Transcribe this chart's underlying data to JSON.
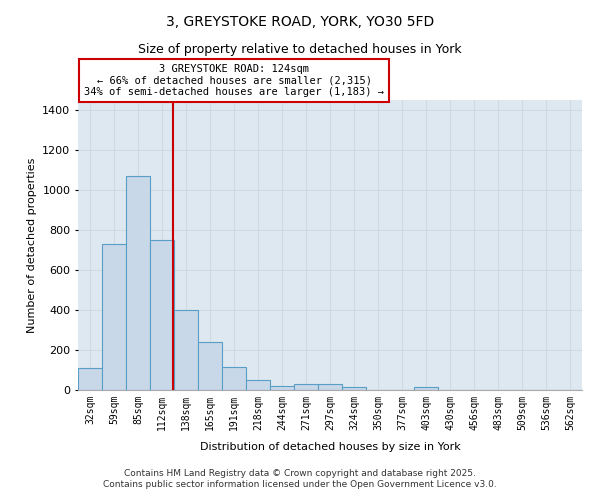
{
  "title1": "3, GREYSTOKE ROAD, YORK, YO30 5FD",
  "title2": "Size of property relative to detached houses in York",
  "xlabel": "Distribution of detached houses by size in York",
  "ylabel": "Number of detached properties",
  "categories": [
    "32sqm",
    "59sqm",
    "85sqm",
    "112sqm",
    "138sqm",
    "165sqm",
    "191sqm",
    "218sqm",
    "244sqm",
    "271sqm",
    "297sqm",
    "324sqm",
    "350sqm",
    "377sqm",
    "403sqm",
    "430sqm",
    "456sqm",
    "483sqm",
    "509sqm",
    "536sqm",
    "562sqm"
  ],
  "values": [
    110,
    730,
    1070,
    750,
    400,
    240,
    115,
    50,
    20,
    30,
    30,
    15,
    0,
    0,
    15,
    0,
    0,
    0,
    0,
    0,
    0
  ],
  "bar_color": "#c8d8e8",
  "bar_edge_color": "#5a9ec8",
  "bar_width": 1.0,
  "annotation_line1": "3 GREYSTOKE ROAD: 124sqm",
  "annotation_line2": "← 66% of detached houses are smaller (2,315)",
  "annotation_line3": "34% of semi-detached houses are larger (1,183) →",
  "annotation_box_color": "#ffffff",
  "annotation_box_edge_color": "#cc0000",
  "red_line_color": "#cc0000",
  "ylim": [
    0,
    1450
  ],
  "yticks": [
    0,
    200,
    400,
    600,
    800,
    1000,
    1200,
    1400
  ],
  "grid_color": "#d0d8e0",
  "bg_color": "#dde8f0",
  "footer1": "Contains HM Land Registry data © Crown copyright and database right 2025.",
  "footer2": "Contains public sector information licensed under the Open Government Licence v3.0."
}
